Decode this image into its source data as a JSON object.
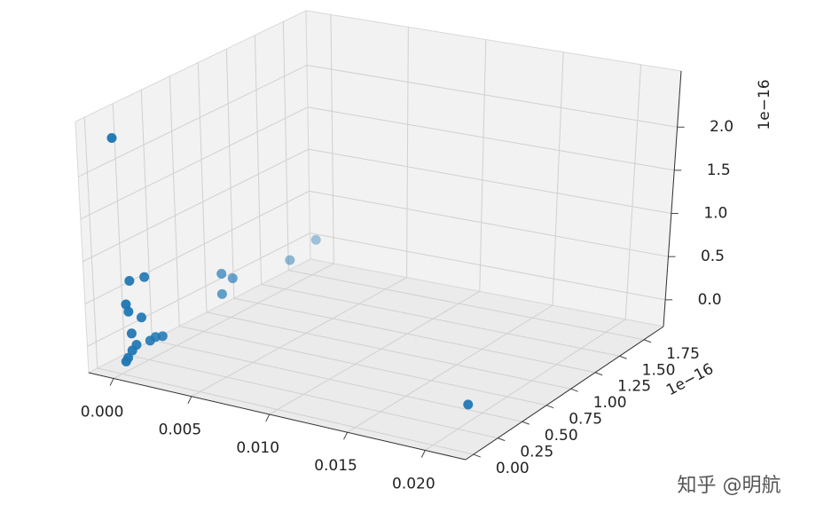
{
  "chart_data": {
    "type": "scatter3d",
    "x": [
      0.0215,
      0,
      0,
      0,
      0.0002,
      0.0002,
      0.0002,
      0,
      0.0001,
      0,
      0,
      0.0001,
      0,
      0.0002,
      0.0001,
      0,
      0,
      0,
      0,
      0.0001
    ],
    "y": [
      0.1,
      0.0,
      1.79,
      1.55,
      0.9,
      1.0,
      0.9,
      0.1,
      0.22,
      0.06,
      0.08,
      0.18,
      0.1,
      0.35,
      0.25,
      0.14,
      0.1,
      0.06,
      0.04,
      0.3
    ],
    "z": [
      0.15,
      2.47,
      0.08,
      0.0,
      0.28,
      0.16,
      0.04,
      0.72,
      0.69,
      0.47,
      0.37,
      0.24,
      0.1,
      -0.09,
      -0.08,
      -0.06,
      -0.1,
      -0.16,
      -0.19,
      -0.07
    ],
    "color": "#1f77b4",
    "depthshade": true,
    "xlim": [
      -0.0016,
      0.0226
    ],
    "ylim": [
      -0.08,
      1.95
    ],
    "zlim": [
      -0.31,
      2.65
    ],
    "xticks": [
      {
        "value": 0,
        "label": "0.000"
      },
      {
        "value": 0.005,
        "label": "0.005"
      },
      {
        "value": 0.01,
        "label": "0.010"
      },
      {
        "value": 0.015,
        "label": "0.015"
      },
      {
        "value": 0.02,
        "label": "0.020"
      }
    ],
    "yticks": [
      {
        "value": 0,
        "label": "0.00"
      },
      0.25,
      {
        "value": 0.5,
        "label": "0.50"
      },
      0.75,
      {
        "value": 1,
        "label": "1.00"
      },
      1.25,
      {
        "value": 1.5,
        "label": "1.50"
      },
      1.75
    ],
    "zticks": [
      {
        "value": 0,
        "label": "0.0"
      },
      0.5,
      {
        "value": 1,
        "label": "1.0"
      },
      1.5,
      {
        "value": 2,
        "label": "2.0"
      }
    ],
    "y_offset_label": "1e−16",
    "z_offset_label": "1e−16",
    "grid": true
  },
  "watermark": "知乎 @明航"
}
